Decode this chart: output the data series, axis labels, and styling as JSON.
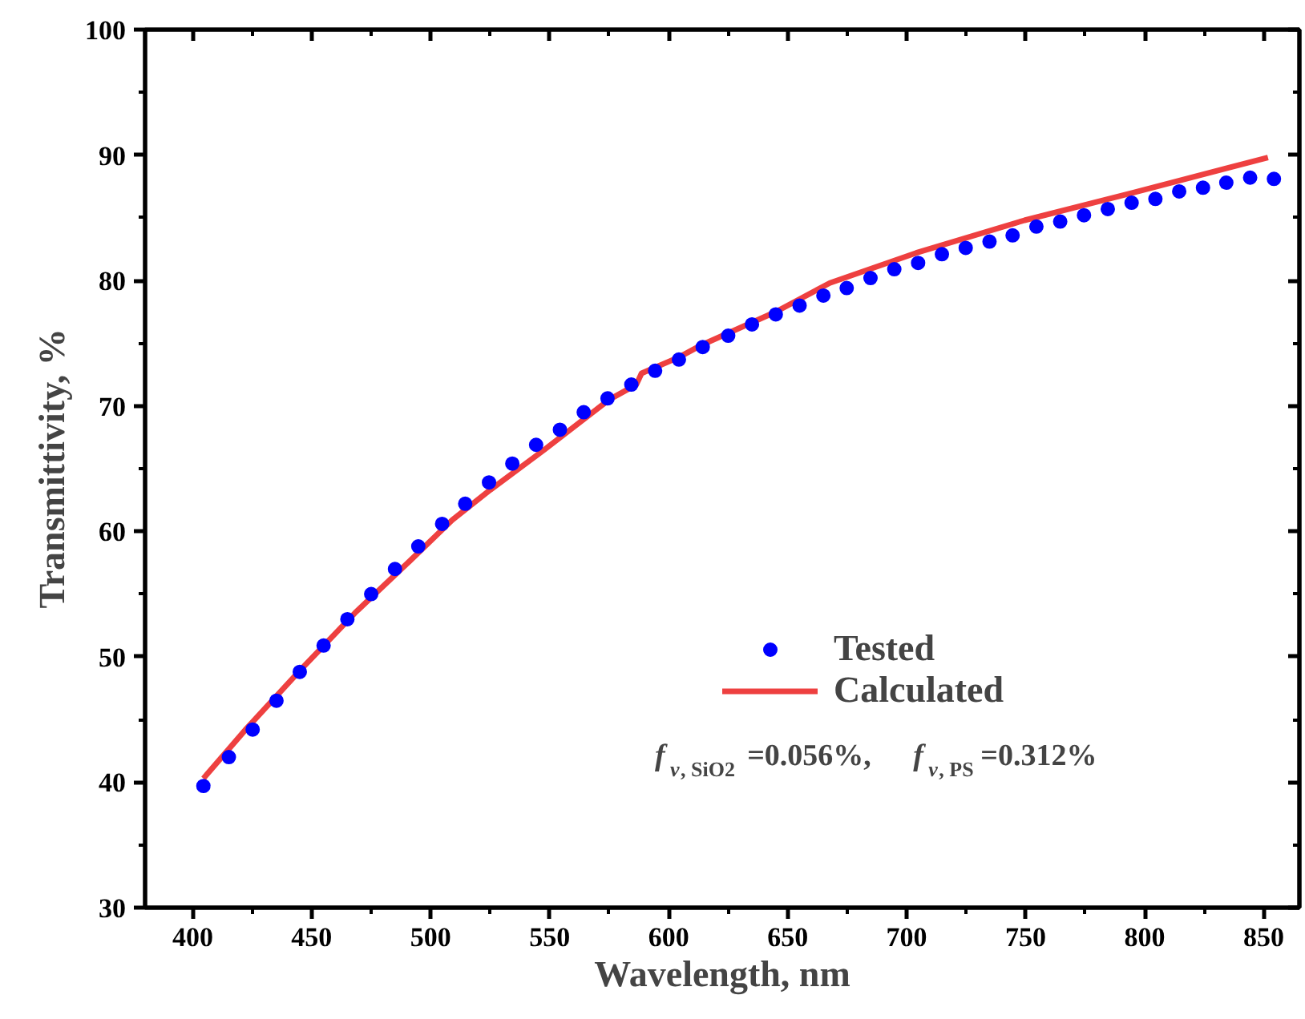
{
  "chart_data": {
    "type": "scatter",
    "xlabel": "Wavelength, nm",
    "ylabel": "Transmittivity, %",
    "xlim": [
      380,
      865
    ],
    "ylim": [
      30,
      100
    ],
    "xticks": [
      400,
      450,
      500,
      550,
      600,
      650,
      700,
      750,
      800,
      850
    ],
    "yticks": [
      30,
      40,
      50,
      60,
      70,
      80,
      90,
      100
    ],
    "grid": false,
    "legend": "right",
    "annotations": [
      "f$_{v, SiO2}$=0.056%,  f$_{v, PS}$=0.312%"
    ],
    "series": [
      {
        "name": "Tested",
        "marker": "circle",
        "color": "#0000ff",
        "x": [
          404.5,
          415.2,
          425.2,
          435.2,
          445,
          455,
          465,
          475,
          485,
          494.8,
          504.8,
          514.5,
          524.5,
          534.3,
          544.3,
          554.3,
          564.3,
          574.3,
          584.3,
          594.3,
          604.3,
          614.3,
          625,
          635,
          645,
          655,
          665,
          674.8,
          684.8,
          694.8,
          704.8,
          714.8,
          724.8,
          734.8,
          744.5,
          754.5,
          764.5,
          774.5,
          784.5,
          794.5,
          804.5,
          814.5,
          824.5,
          834.3,
          844.3,
          854.3
        ],
        "values": [
          39.7,
          42.0,
          44.2,
          46.5,
          48.8,
          50.9,
          53.0,
          55.0,
          57.0,
          58.8,
          60.6,
          62.2,
          63.9,
          65.4,
          66.9,
          68.1,
          69.5,
          70.6,
          71.7,
          72.8,
          73.7,
          74.7,
          75.6,
          76.5,
          77.3,
          78.0,
          78.8,
          79.4,
          80.2,
          80.9,
          81.4,
          82.1,
          82.6,
          83.1,
          83.6,
          84.3,
          84.7,
          85.2,
          85.7,
          86.2,
          86.5,
          87.1,
          87.4,
          87.8,
          88.2,
          88.1
        ]
      },
      {
        "name": "Calculated",
        "type": "line",
        "color": "#ee4040",
        "line_style": "solid",
        "x": [
          404.5,
          422.7,
          445.5,
          468.2,
          491,
          509,
          525,
          547.7,
          575,
          586.4,
          588.6,
          604.5,
          613.2,
          645,
          667.7,
          704,
          749.5,
          795,
          851.8
        ],
        "values": [
          40.3,
          44.3,
          49.0,
          53.5,
          57.6,
          60.9,
          63.3,
          66.5,
          70.5,
          71.7,
          72.6,
          73.9,
          74.8,
          77.5,
          79.8,
          82.2,
          84.8,
          87.0,
          89.8
        ]
      }
    ]
  }
}
